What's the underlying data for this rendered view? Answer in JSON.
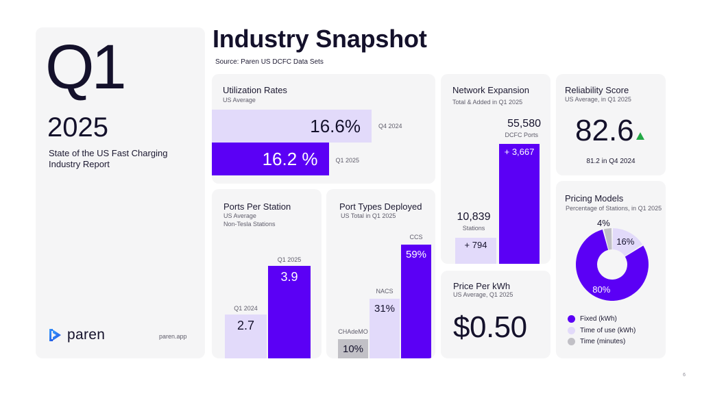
{
  "hero": {
    "quarter": "Q1",
    "year": "2025",
    "report_title": "State of the US Fast Charging Industry Report",
    "brand": "paren",
    "website": "paren.app"
  },
  "header": {
    "title": "Industry Snapshot",
    "source": "Source: Paren US DCFC Data Sets"
  },
  "utilization": {
    "title": "Utilization Rates",
    "subtitle": "US Average",
    "bars": [
      {
        "period": "Q4 2024",
        "label": "16.6%",
        "value": 16.6,
        "color": "#e2dafa"
      },
      {
        "period": "Q1 2025",
        "label": "16.2 %",
        "value": 16.2,
        "color": "#5b00f5"
      }
    ]
  },
  "ports_per_station": {
    "title": "Ports Per Station",
    "subtitle1": "US Average",
    "subtitle2": "Non-Tesla Stations",
    "bars": [
      {
        "period": "Q1 2024",
        "label": "2.7",
        "value": 2.7
      },
      {
        "period": "Q1 2025",
        "label": "3.9",
        "value": 3.9
      }
    ]
  },
  "port_types": {
    "title": "Port Types Deployed",
    "subtitle": "US Total in Q1 2025",
    "bars": [
      {
        "type": "CHAdeMO",
        "label": "10%",
        "value": 10
      },
      {
        "type": "NACS",
        "label": "31%",
        "value": 31
      },
      {
        "type": "CCS",
        "label": "59%",
        "value": 59
      }
    ]
  },
  "network": {
    "title": "Network Expansion",
    "subtitle": "Total & Added in Q1 2025",
    "stations_total": "10,839",
    "stations_label": "Stations",
    "stations_added": "+ 794",
    "ports_total": "55,580",
    "ports_label": "DCFC Ports",
    "ports_added": "+ 3,667"
  },
  "price": {
    "title": "Price Per kWh",
    "subtitle": "US Average, Q1 2025",
    "value": "$0.50"
  },
  "reliability": {
    "title": "Reliability Score",
    "subtitle": "US Average, in Q1 2025",
    "value": "82.6",
    "trend": "up",
    "previous": "81.2 in Q4 2024"
  },
  "pricing_models": {
    "title": "Pricing Models",
    "subtitle": "Percentage of Stations, in Q1 2025",
    "slices": [
      {
        "name": "Fixed (kWh)",
        "label": "80%",
        "value": 80,
        "color": "#5b00f5"
      },
      {
        "name": "Time of use (kWh)",
        "label": "16%",
        "value": 16,
        "color": "#e2dafa"
      },
      {
        "name": "Time (minutes)",
        "label": "4%",
        "value": 4,
        "color": "#c1c0c6"
      }
    ]
  },
  "page_number": "6"
}
